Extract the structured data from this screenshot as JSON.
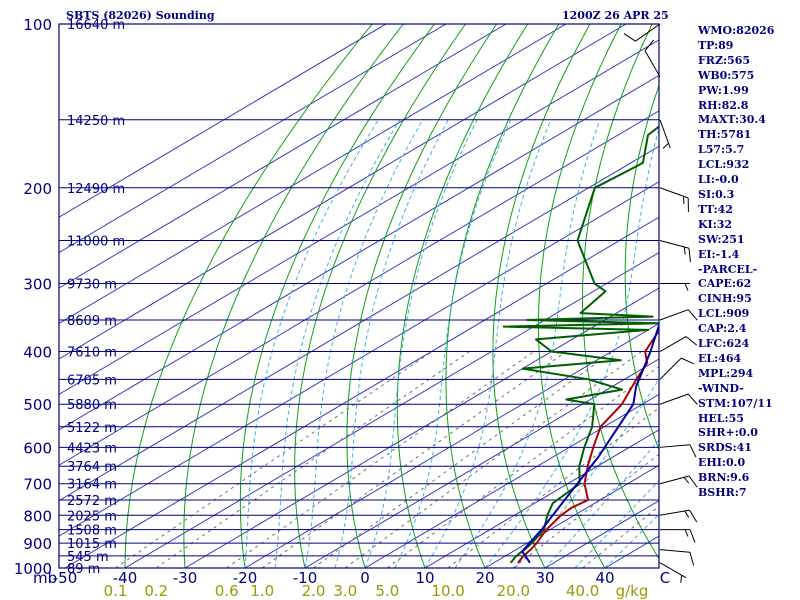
{
  "header": {
    "station": "SBTS (82026) Sounding",
    "time": "1200Z 26 APR 25"
  },
  "indices": [
    "WMO:82026",
    "TP:89",
    "FRZ:565",
    "WB0:575",
    "PW:1.99",
    "RH:82.8",
    "MAXT:30.4",
    "TH:5781",
    "L57:5.7",
    "LCL:932",
    "LI:-0.0",
    "SI:0.3",
    "TT:42",
    "KI:32",
    "SW:251",
    "EI:-1.4",
    "-PARCEL-",
    "CAPE:62",
    "CINH:95",
    "LCL:909",
    "CAP:2.4",
    "LFC:624",
    "EL:464",
    "MPL:294",
    "-WIND-",
    "STM:107/11",
    "HEL:55",
    "SHR+:0.0",
    "SRDS:41",
    "EHI:0.0",
    "BRN:9.6",
    "BSHR:7"
  ],
  "colors": {
    "frame": "#000080",
    "isobar": "#000080",
    "isotherm": "#3a3ac0",
    "dry_adiabat": "#10a010",
    "moist_adiabat": "#40b0e0",
    "mixing_ratio": "#707070",
    "temperature": "#b00000",
    "dewpoint": "#006000",
    "parcel": "#0000b0",
    "wind_barb": "#000000",
    "mixing_label": "#9a9a00"
  },
  "chart_data": {
    "type": "skew-t log-p sounding",
    "pressure_axis": {
      "unit": "mb",
      "ticks": [
        100,
        200,
        300,
        400,
        500,
        600,
        700,
        800,
        900,
        1000
      ],
      "range": [
        1000,
        100
      ],
      "scale": "log"
    },
    "temperature_axis": {
      "unit_label": "C",
      "ticks": [
        -50,
        -40,
        -30,
        -20,
        -10,
        0,
        10,
        20,
        30,
        40
      ],
      "range_at_1000mb": [
        -50,
        50
      ]
    },
    "mixing_ratio_axis": {
      "unit": "g/kg",
      "ticks": [
        "0.1",
        "0.2",
        "0.6",
        "1.0",
        "2.0",
        "3.0",
        "5.0",
        "10.0",
        "20.0",
        "40.0"
      ],
      "values": [
        0.1,
        0.2,
        0.6,
        1.0,
        2.0,
        3.0,
        5.0,
        10.0,
        20.0,
        40.0
      ]
    },
    "height_labels": [
      {
        "p": 100,
        "label": "16640 m"
      },
      {
        "p": 150,
        "label": "14250 m"
      },
      {
        "p": 200,
        "label": "12490 m"
      },
      {
        "p": 250,
        "label": "11000 m"
      },
      {
        "p": 300,
        "label": "9730 m"
      },
      {
        "p": 350,
        "label": "8609 m"
      },
      {
        "p": 400,
        "label": "7610 m"
      },
      {
        "p": 450,
        "label": "6705 m"
      },
      {
        "p": 500,
        "label": "5880 m"
      },
      {
        "p": 550,
        "label": "5122 m"
      },
      {
        "p": 600,
        "label": "4423 m"
      },
      {
        "p": 650,
        "label": "3764 m"
      },
      {
        "p": 700,
        "label": "3164 m"
      },
      {
        "p": 750,
        "label": "2572 m"
      },
      {
        "p": 800,
        "label": "2025 m"
      },
      {
        "p": 850,
        "label": "1508 m"
      },
      {
        "p": 900,
        "label": "1015 m"
      },
      {
        "p": 950,
        "label": "545 m"
      },
      {
        "p": 1000,
        "label": "89 m"
      }
    ],
    "series": [
      {
        "name": "temperature",
        "points": [
          [
            978,
            24.0
          ],
          [
            950,
            23.0
          ],
          [
            925,
            22.4
          ],
          [
            900,
            21.6
          ],
          [
            850,
            19.4
          ],
          [
            800,
            17.8
          ],
          [
            775,
            17.4
          ],
          [
            750,
            18.0
          ],
          [
            700,
            12.8
          ],
          [
            650,
            8.4
          ],
          [
            600,
            4.0
          ],
          [
            550,
            -0.6
          ],
          [
            500,
            -3.4
          ],
          [
            450,
            -8.0
          ],
          [
            420,
            -10.8
          ],
          [
            400,
            -14.4
          ],
          [
            350,
            -19.8
          ],
          [
            300,
            -29.0
          ],
          [
            250,
            -40.0
          ],
          [
            200,
            -50.3
          ],
          [
            150,
            -64.6
          ],
          [
            125,
            -69.0
          ],
          [
            100,
            -75.2
          ]
        ]
      },
      {
        "name": "dewpoint",
        "points": [
          [
            978,
            22.8
          ],
          [
            950,
            21.8
          ],
          [
            925,
            21.4
          ],
          [
            900,
            20.8
          ],
          [
            850,
            19.0
          ],
          [
            800,
            15.5
          ],
          [
            760,
            13.0
          ],
          [
            700,
            12.0
          ],
          [
            650,
            7.0
          ],
          [
            600,
            2.5
          ],
          [
            550,
            -2.0
          ],
          [
            500,
            -8.0
          ],
          [
            490,
            -14.0
          ],
          [
            470,
            -7.5
          ],
          [
            450,
            -16.0
          ],
          [
            430,
            -30.0
          ],
          [
            415,
            -16.0
          ],
          [
            400,
            -30.0
          ],
          [
            380,
            -36.0
          ],
          [
            365,
            -20.0
          ],
          [
            360,
            -45.0
          ],
          [
            355,
            -20.0
          ],
          [
            350,
            -43.0
          ],
          [
            345,
            -23.0
          ],
          [
            340,
            -36.0
          ],
          [
            310,
            -38.0
          ],
          [
            300,
            -42.0
          ],
          [
            250,
            -57.0
          ],
          [
            200,
            -69.0
          ],
          [
            180,
            -68.0
          ],
          [
            160,
            -75.0
          ],
          [
            150,
            -76.0
          ],
          [
            125,
            -70.0
          ],
          [
            100,
            -71.0
          ]
        ]
      },
      {
        "name": "parcel",
        "points": [
          [
            978,
            26.0
          ],
          [
            932,
            21.5
          ],
          [
            909,
            20.7
          ],
          [
            850,
            18.6
          ],
          [
            700,
            11.6
          ],
          [
            624,
            7.5
          ],
          [
            500,
            -1.5
          ],
          [
            464,
            -6.0
          ],
          [
            400,
            -13.5
          ],
          [
            350,
            -20.7
          ],
          [
            300,
            -29.8
          ],
          [
            250,
            -40.4
          ],
          [
            200,
            -53.0
          ],
          [
            150,
            -67.0
          ],
          [
            130,
            -74.0
          ],
          [
            120,
            -77.0
          ]
        ]
      }
    ],
    "wind": {
      "unit": "kt",
      "barbs": [
        {
          "p": 978,
          "dir": 120,
          "spd": 5
        },
        {
          "p": 925,
          "dir": 95,
          "spd": 10
        },
        {
          "p": 850,
          "dir": 90,
          "spd": 15
        },
        {
          "p": 800,
          "dir": 80,
          "spd": 15
        },
        {
          "p": 700,
          "dir": 75,
          "spd": 15
        },
        {
          "p": 600,
          "dir": 85,
          "spd": 10
        },
        {
          "p": 500,
          "dir": 70,
          "spd": 10
        },
        {
          "p": 450,
          "dir": 45,
          "spd": 10
        },
        {
          "p": 400,
          "dir": 60,
          "spd": 10
        },
        {
          "p": 350,
          "dir": 70,
          "spd": 10
        },
        {
          "p": 300,
          "dir": 90,
          "spd": 5
        },
        {
          "p": 250,
          "dir": 105,
          "spd": 15
        },
        {
          "p": 200,
          "dir": 110,
          "spd": 15
        },
        {
          "p": 150,
          "dir": 160,
          "spd": 5
        },
        {
          "p": 125,
          "dir": 330,
          "spd": 10
        },
        {
          "p": 100,
          "dir": 235,
          "spd": 10
        }
      ]
    }
  }
}
